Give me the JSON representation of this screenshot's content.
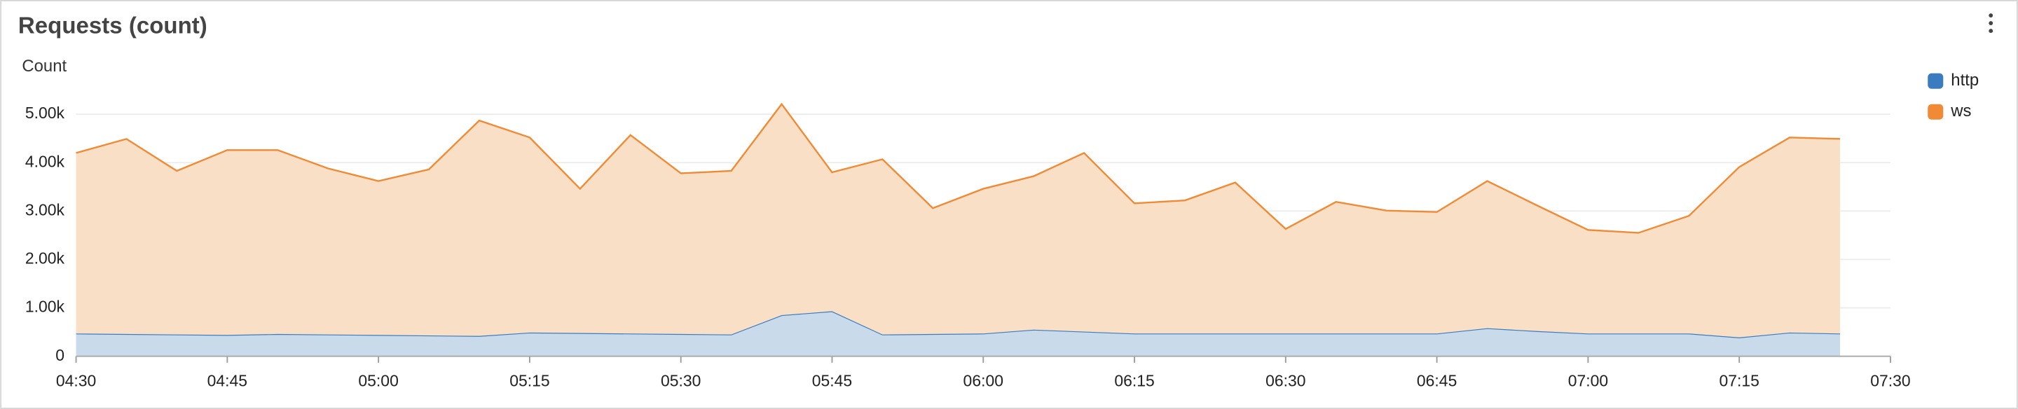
{
  "chart_data": {
    "type": "stacked-area",
    "title": "Requests (count)",
    "ylabel": "Count",
    "x": [
      "04:30",
      "04:35",
      "04:40",
      "04:45",
      "04:50",
      "04:55",
      "05:00",
      "05:05",
      "05:10",
      "05:15",
      "05:20",
      "05:25",
      "05:30",
      "05:35",
      "05:40",
      "05:45",
      "05:50",
      "05:55",
      "06:00",
      "06:05",
      "06:10",
      "06:15",
      "06:20",
      "06:25",
      "06:30",
      "06:35",
      "06:40",
      "06:45",
      "06:50",
      "06:55",
      "07:00",
      "07:05",
      "07:10",
      "07:15",
      "07:20",
      "07:25"
    ],
    "series": [
      {
        "name": "http",
        "color": "#3b7bbf",
        "fill": "#c9dbeb",
        "values": [
          470,
          460,
          450,
          440,
          460,
          450,
          440,
          430,
          420,
          490,
          480,
          470,
          460,
          450,
          850,
          930,
          450,
          460,
          470,
          550,
          510,
          470,
          470,
          470,
          470,
          470,
          470,
          470,
          580,
          520,
          470,
          470,
          470,
          390,
          490,
          470
        ]
      },
      {
        "name": "ws",
        "color": "#f08a35",
        "fill": "#f9dfc6",
        "values": [
          3730,
          4030,
          3380,
          3820,
          3800,
          3430,
          3180,
          3430,
          4450,
          4030,
          2980,
          4100,
          3320,
          3380,
          4360,
          2870,
          3620,
          2600,
          2990,
          3170,
          3690,
          2690,
          2750,
          3120,
          2160,
          2720,
          2540,
          2510,
          3040,
          2590,
          2140,
          2080,
          2430,
          3520,
          4030,
          4020
        ]
      }
    ],
    "xlim": [
      "04:30",
      "07:30"
    ],
    "xticks": [
      "04:30",
      "04:45",
      "05:00",
      "05:15",
      "05:30",
      "05:45",
      "06:00",
      "06:15",
      "06:30",
      "06:45",
      "07:00",
      "07:15",
      "07:30"
    ],
    "ylim": [
      0,
      5500
    ],
    "yticks": [
      0,
      {
        "value": 1000,
        "label": "1.00k"
      },
      {
        "value": 2000,
        "label": "2.00k"
      },
      {
        "value": 3000,
        "label": "3.00k"
      },
      {
        "value": 4000,
        "label": "4.00k"
      },
      {
        "value": 5000,
        "label": "5.00k"
      }
    ],
    "grid": true,
    "legend": "top-right"
  }
}
